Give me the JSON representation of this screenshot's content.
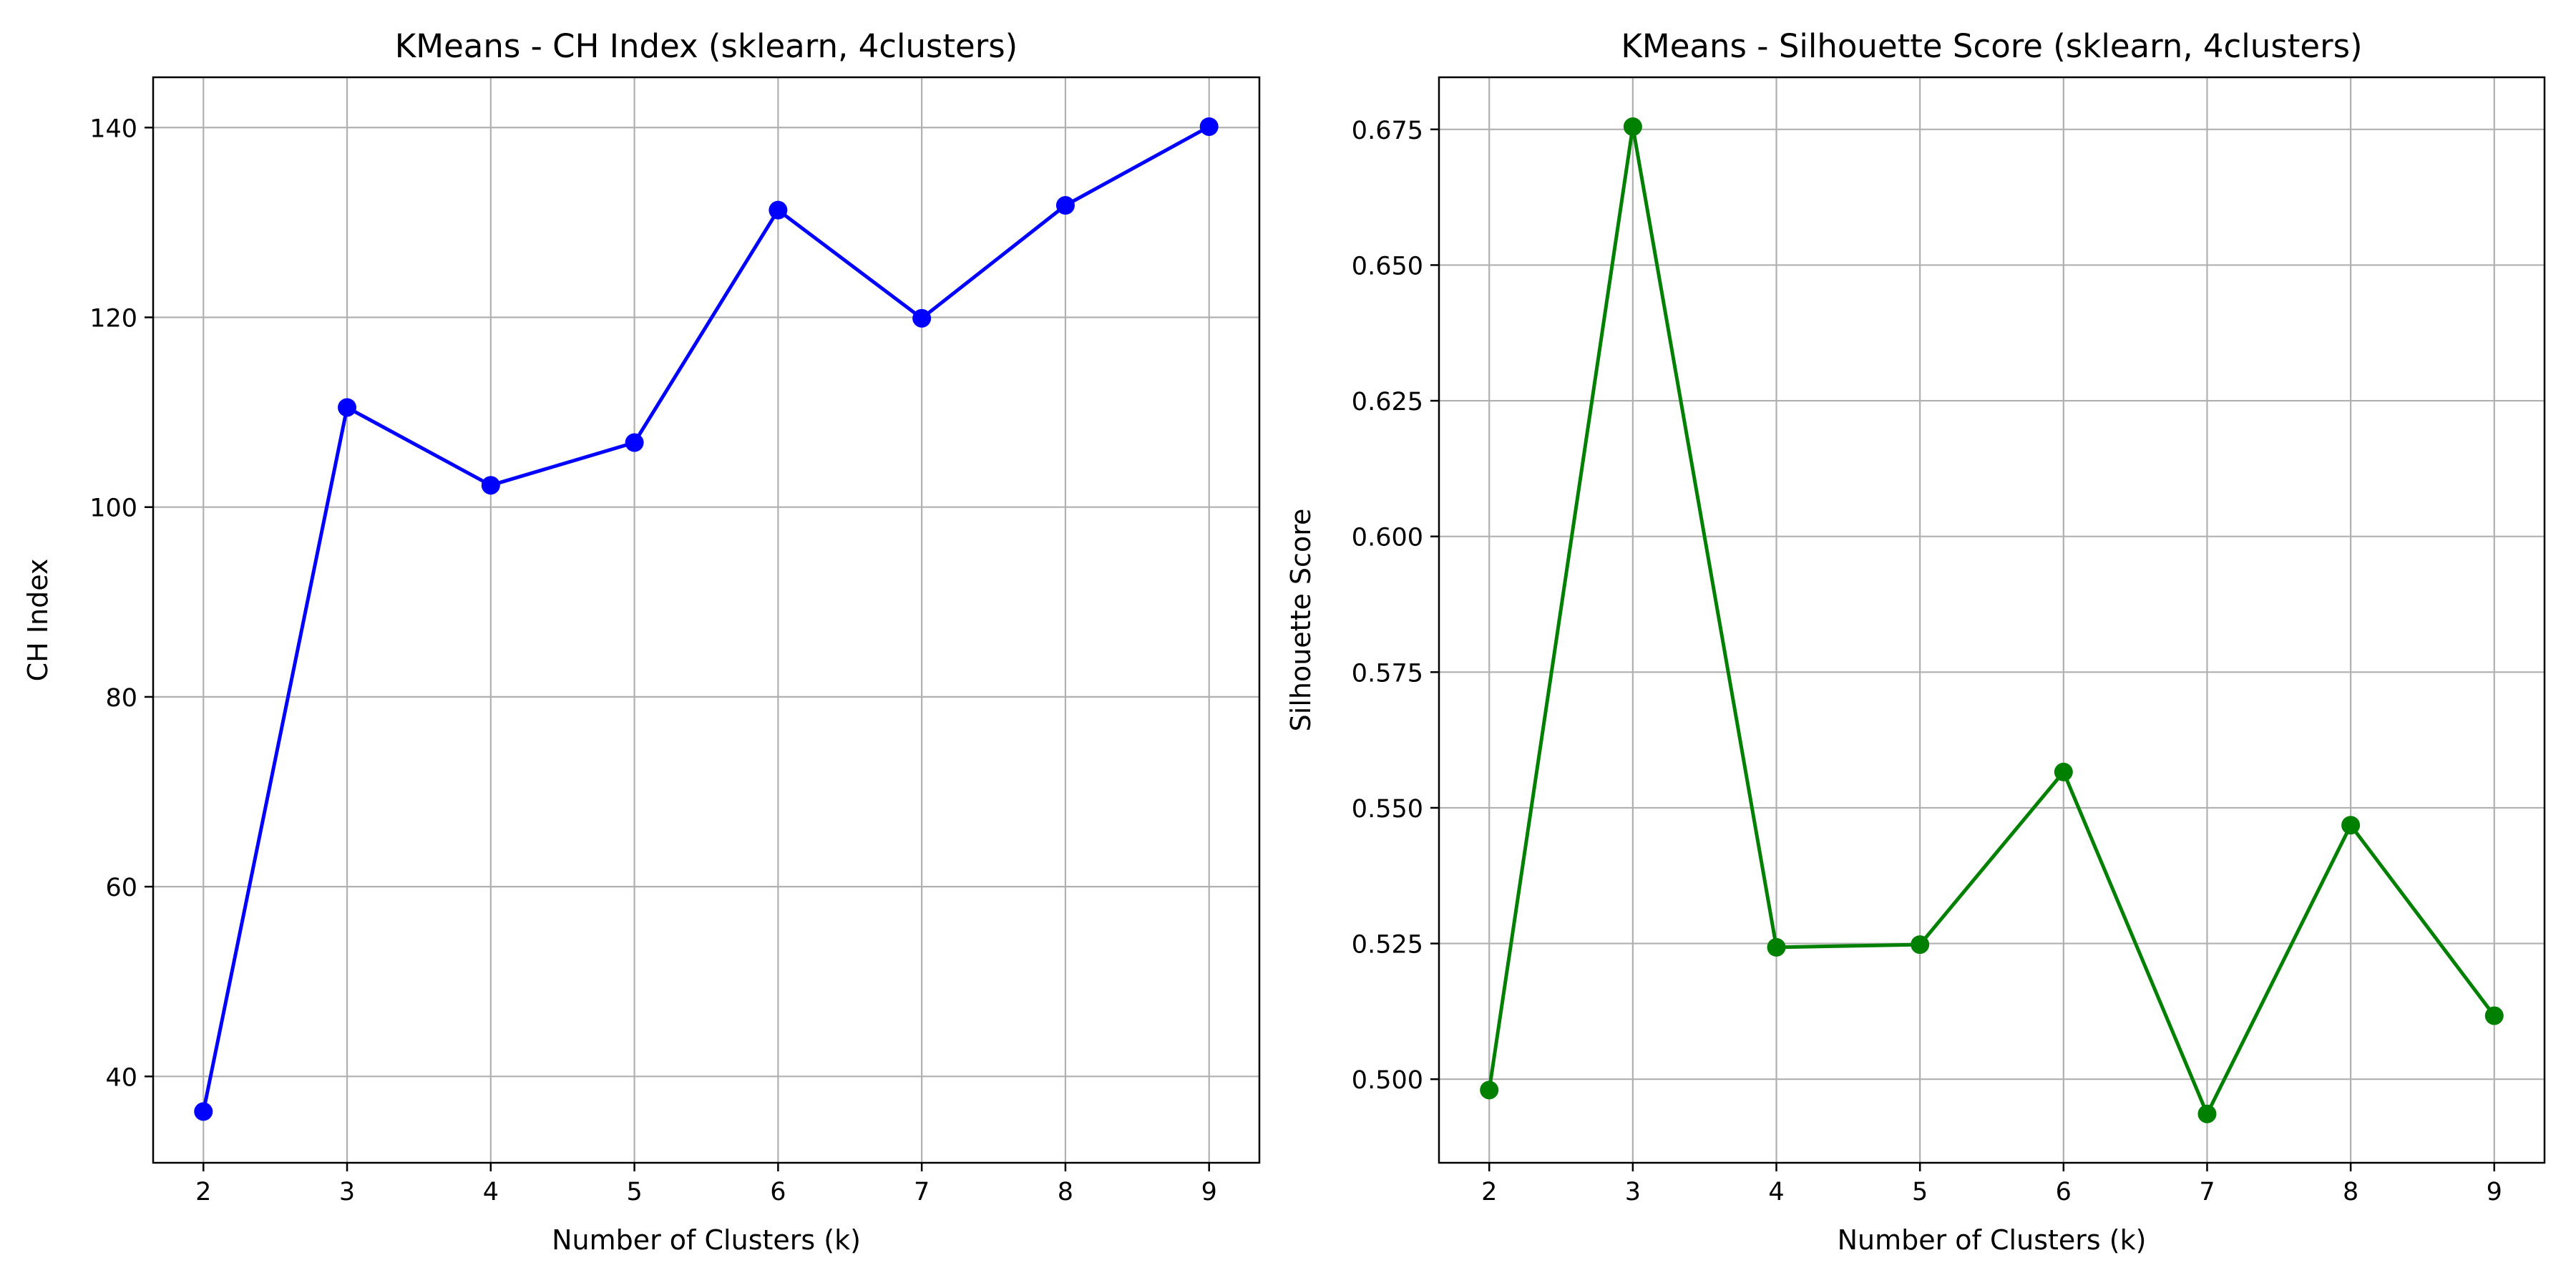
{
  "chart_data": [
    {
      "type": "line",
      "title": "KMeans - CH Index (sklearn, 4clusters)",
      "xlabel": "Number of Clusters (k)",
      "ylabel": "CH Index",
      "x": [
        2,
        3,
        4,
        5,
        6,
        7,
        8,
        9
      ],
      "xticks": [
        "2",
        "3",
        "4",
        "5",
        "6",
        "7",
        "8",
        "9"
      ],
      "xlim": [
        1.65,
        9.35
      ],
      "ylim": [
        30.9,
        145.3
      ],
      "yticks": [
        "40",
        "60",
        "80",
        "100",
        "120",
        "140"
      ],
      "series": [
        {
          "values": [
            36.3,
            110.5,
            102.3,
            106.8,
            131.3,
            119.9,
            131.8,
            140.1
          ],
          "color": "#0000ff",
          "marker": "circle"
        }
      ],
      "grid": true
    },
    {
      "type": "line",
      "title": "KMeans - Silhouette Score (sklearn, 4clusters)",
      "xlabel": "Number of Clusters (k)",
      "ylabel": "Silhouette Score",
      "x": [
        2,
        3,
        4,
        5,
        6,
        7,
        8,
        9
      ],
      "xticks": [
        "2",
        "3",
        "4",
        "5",
        "6",
        "7",
        "8",
        "9"
      ],
      "xlim": [
        1.65,
        9.35
      ],
      "ylim": [
        0.4846,
        0.6846
      ],
      "yticks": [
        "0.500",
        "0.525",
        "0.550",
        "0.575",
        "0.600",
        "0.625",
        "0.650",
        "0.675"
      ],
      "series": [
        {
          "values": [
            0.498,
            0.6755,
            0.5243,
            0.5248,
            0.5566,
            0.4936,
            0.5468,
            0.5117
          ],
          "color": "#008000",
          "marker": "circle"
        }
      ],
      "grid": true
    }
  ]
}
